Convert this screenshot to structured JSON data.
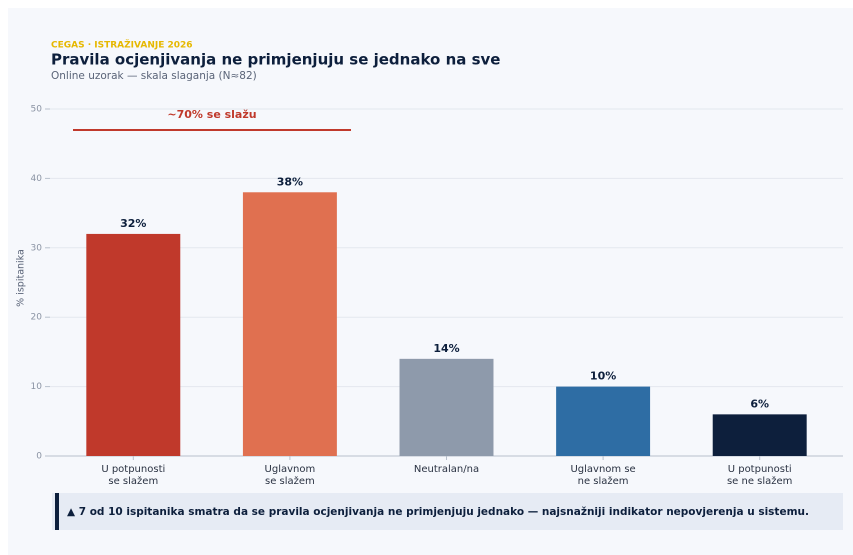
{
  "chart_data": {
    "type": "bar",
    "kicker": "CEGAS · ISTRAŽIVANJE 2026",
    "title": "Pravila ocjenjivanja ne primjenjuju se jednako na sve",
    "subtitle": "Online uzorak — skala slaganja (N≈82)",
    "ylabel": "% ispitanika",
    "categories": [
      [
        "U potpunosti",
        "se slažem"
      ],
      [
        "Uglavnom",
        "se slažem"
      ],
      [
        "Neutralan/na"
      ],
      [
        "Uglavnom se",
        "ne slažem"
      ],
      [
        "U potpunosti",
        "se ne slažem"
      ]
    ],
    "values": [
      32,
      38,
      14,
      10,
      6
    ],
    "value_labels": [
      "32%",
      "38%",
      "14%",
      "10%",
      "6%"
    ],
    "colors": [
      "#c0392b",
      "#e07050",
      "#8e9aab",
      "#2e6da4",
      "#0d1f3c"
    ],
    "ylim": [
      0,
      50
    ],
    "yticks": [
      0,
      10,
      20,
      30,
      40,
      50
    ],
    "grid": true,
    "annotation": "~70% se slažu",
    "note": "▲  7 od 10 ispitanika smatra da se pravila ocjenjivanja ne primjenjuju jednako — najsnažniji indikator nepovjerenja u sistemu."
  }
}
